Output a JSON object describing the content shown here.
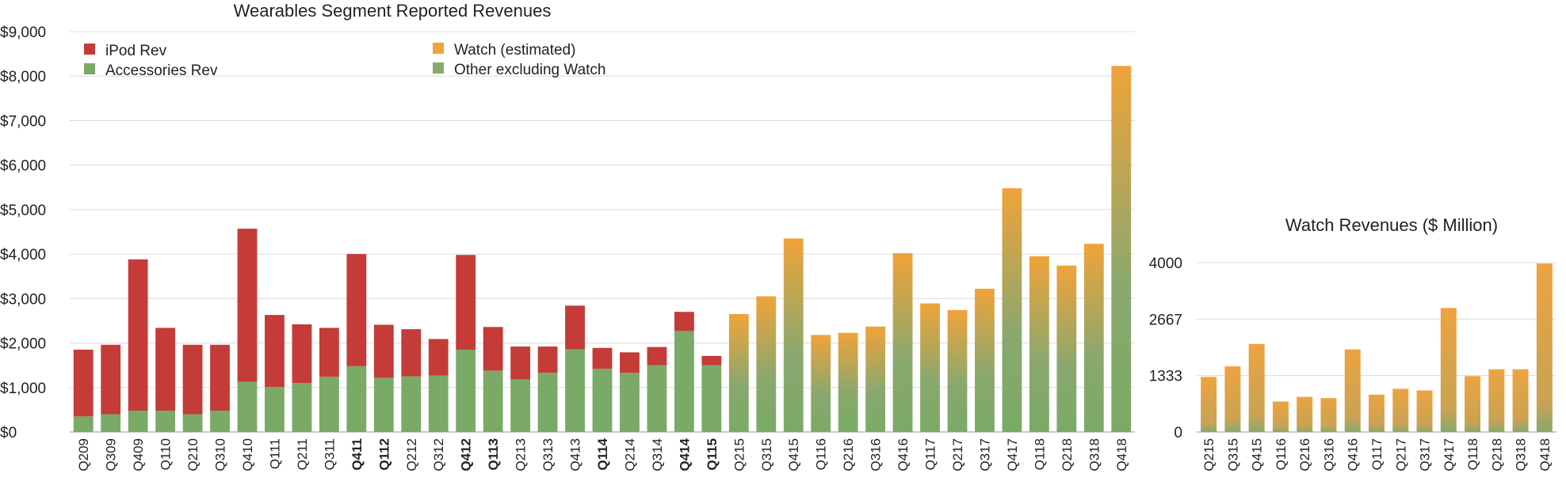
{
  "chart_data": [
    {
      "type": "bar",
      "stacked": true,
      "title": "Wearables Segment Reported Revenues",
      "xlabel": "",
      "ylabel": "",
      "ylim": [
        0,
        9000
      ],
      "yticks": [
        "$0",
        "$1,000",
        "$2,000",
        "$3,000",
        "$4,000",
        "$5,000",
        "$6,000",
        "$7,000",
        "$8,000",
        "$9,000"
      ],
      "grid": true,
      "legend_position": "top-left",
      "categories": [
        "Q209",
        "Q309",
        "Q409",
        "Q110",
        "Q210",
        "Q310",
        "Q410",
        "Q111",
        "Q211",
        "Q311",
        "Q411",
        "Q112",
        "Q212",
        "Q312",
        "Q412",
        "Q113",
        "Q213",
        "Q313",
        "Q413",
        "Q114",
        "Q214",
        "Q314",
        "Q414",
        "Q115",
        "Q215",
        "Q315",
        "Q415",
        "Q116",
        "Q216",
        "Q316",
        "Q416",
        "Q117",
        "Q217",
        "Q317",
        "Q417",
        "Q118",
        "Q218",
        "Q318",
        "Q418"
      ],
      "bold_categories": [
        "Q411",
        "Q112",
        "Q412",
        "Q113",
        "Q114",
        "Q414",
        "Q115"
      ],
      "series": [
        {
          "name": "Accessories Rev",
          "color": "#7aaa66",
          "values": [
            350,
            400,
            480,
            480,
            400,
            480,
            1130,
            1010,
            1100,
            1240,
            1480,
            1220,
            1250,
            1270,
            1850,
            1380,
            1180,
            1330,
            1860,
            1420,
            1330,
            1500,
            2270,
            1500,
            null,
            null,
            null,
            null,
            null,
            null,
            null,
            null,
            null,
            null,
            null,
            null,
            null,
            null,
            null
          ]
        },
        {
          "name": "iPod Rev",
          "color": "#c43b38",
          "values": [
            1500,
            1560,
            3400,
            1860,
            1560,
            1480,
            3440,
            1620,
            1320,
            1100,
            2520,
            1190,
            1060,
            820,
            2130,
            980,
            740,
            590,
            980,
            470,
            460,
            410,
            430,
            210,
            null,
            null,
            null,
            null,
            null,
            null,
            null,
            null,
            null,
            null,
            null,
            null,
            null,
            null,
            null
          ]
        },
        {
          "name": "Other excluding Watch",
          "color": "#8aa86e",
          "values": [
            null,
            null,
            null,
            null,
            null,
            null,
            null,
            null,
            null,
            null,
            null,
            null,
            null,
            null,
            null,
            null,
            null,
            null,
            null,
            null,
            null,
            null,
            null,
            null,
            1400,
            1550,
            2300,
            1530,
            1430,
            1570,
            2100,
            1990,
            1790,
            2250,
            2600,
            2650,
            2310,
            2800,
            4250
          ]
        },
        {
          "name": "Watch (estimated)",
          "color": "#f0a33a",
          "values": [
            null,
            null,
            null,
            null,
            null,
            null,
            null,
            null,
            null,
            null,
            null,
            null,
            null,
            null,
            null,
            null,
            null,
            null,
            null,
            null,
            null,
            null,
            null,
            null,
            1250,
            1500,
            2050,
            650,
            800,
            800,
            1920,
            900,
            950,
            970,
            2880,
            1300,
            1430,
            1430,
            3980
          ]
        }
      ]
    },
    {
      "type": "bar",
      "title": "Watch Revenues ($ Million)",
      "xlabel": "",
      "ylabel": "",
      "ylim": [
        0,
        4000
      ],
      "yticks": [
        "0",
        "1333",
        "2667",
        "4000"
      ],
      "grid": true,
      "color": "#e8a044",
      "categories": [
        "Q215",
        "Q315",
        "Q415",
        "Q116",
        "Q216",
        "Q316",
        "Q416",
        "Q117",
        "Q217",
        "Q317",
        "Q417",
        "Q118",
        "Q218",
        "Q318",
        "Q418"
      ],
      "values": [
        1300,
        1550,
        2080,
        720,
        830,
        800,
        1950,
        880,
        1020,
        980,
        2930,
        1320,
        1480,
        1480,
        3980
      ]
    }
  ]
}
